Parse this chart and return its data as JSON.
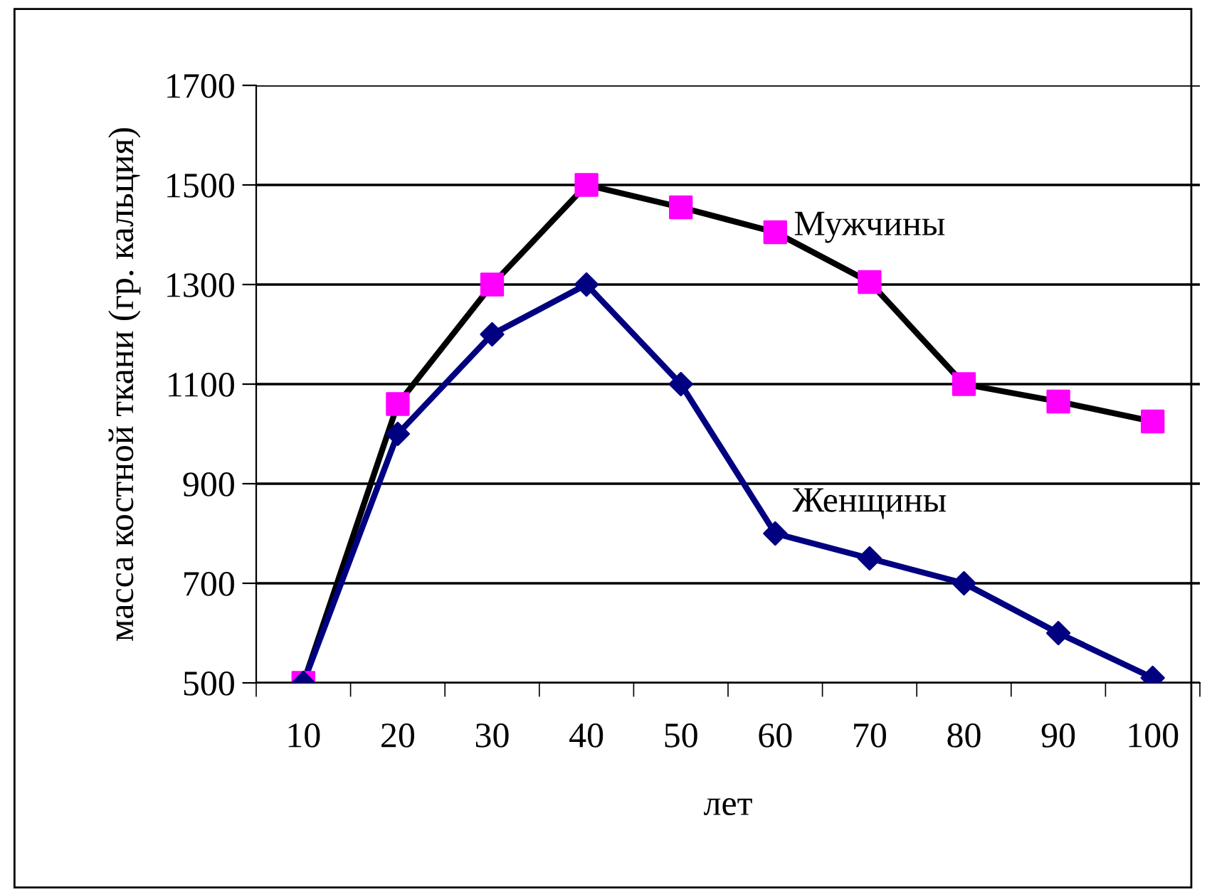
{
  "chart_data": {
    "type": "line",
    "xlabel": "лет",
    "ylabel": "масса костной ткани (гр. кальция)",
    "categories": [
      "10",
      "20",
      "30",
      "40",
      "50",
      "60",
      "70",
      "80",
      "90",
      "100"
    ],
    "series": [
      {
        "name": "Мужчины",
        "color": "#000000",
        "colors": [
          "#ff00ff",
          "#ff00ff",
          "#ff00ff",
          "#ff00ff",
          "#ff00ff",
          "#ff00ff",
          "#ff00ff",
          "#ff00ff",
          "#ff00ff",
          "#ff00ff"
        ],
        "marker": "square",
        "values": [
          500,
          1060,
          1300,
          1500,
          1455,
          1405,
          1305,
          1100,
          1065,
          1025
        ]
      },
      {
        "name": "Женщины",
        "color": "#000080",
        "marker": "diamond",
        "values": [
          500,
          1000,
          1200,
          1300,
          1100,
          800,
          750,
          700,
          600,
          510
        ]
      }
    ],
    "ylim": [
      500,
      1700
    ],
    "yticks": [
      500,
      700,
      900,
      1100,
      1300,
      1500,
      1700
    ],
    "grid": "y",
    "legend": false
  }
}
